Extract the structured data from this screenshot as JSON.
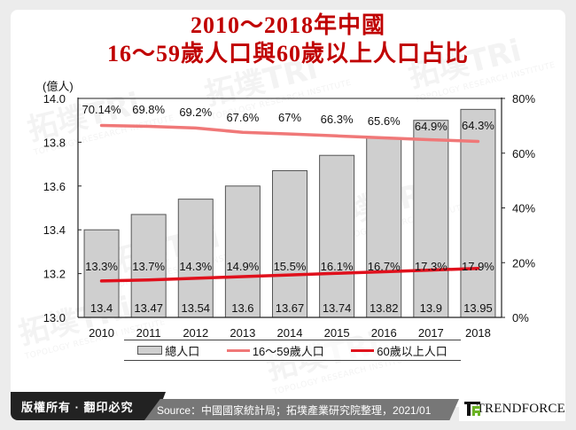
{
  "title": {
    "line1": "2010～2018年中國",
    "line2": "16～59歲人口與60歲以上人口占比"
  },
  "watermark": {
    "text": "拓墣TRi",
    "subtext": "TOPOLOGY RESEARCH INSTITUTE"
  },
  "chart_data": {
    "type": "bar",
    "title": "2010～2018年中國 16～59歲人口與60歲以上人口占比",
    "categories": [
      "2010",
      "2011",
      "2012",
      "2013",
      "2014",
      "2015",
      "2016",
      "2017",
      "2018"
    ],
    "series": [
      {
        "name": "總人口",
        "type": "bar",
        "axis": "left",
        "color": "#cfcfcf",
        "values": [
          13.4,
          13.47,
          13.54,
          13.6,
          13.67,
          13.74,
          13.82,
          13.9,
          13.95
        ],
        "labels": [
          "13.4",
          "13.47",
          "13.54",
          "13.6",
          "13.67",
          "13.74",
          "13.82",
          "13.9",
          "13.95"
        ]
      },
      {
        "name": "16～59歲人口",
        "type": "line",
        "axis": "right",
        "color": "#f07878",
        "values": [
          70.14,
          69.8,
          69.2,
          67.6,
          67,
          66.3,
          65.6,
          64.9,
          64.3
        ],
        "labels": [
          "70.14%",
          "69.8%",
          "69.2%",
          "67.6%",
          "67%",
          "66.3%",
          "65.6%",
          "64.9%",
          "64.3%"
        ]
      },
      {
        "name": "60歲以上人口",
        "type": "line",
        "axis": "right",
        "color": "#e0101c",
        "values": [
          13.3,
          13.7,
          14.3,
          14.9,
          15.5,
          16.1,
          16.7,
          17.3,
          17.9
        ],
        "labels": [
          "13.3%",
          "13.7%",
          "14.3%",
          "14.9%",
          "15.5%",
          "16.1%",
          "16.7%",
          "17.3%",
          "17.9%"
        ]
      }
    ],
    "ylabel": "(億人)",
    "ylim": [
      13.0,
      14.0
    ],
    "yticks": [
      "13.0",
      "13.2",
      "13.4",
      "13.6",
      "13.8",
      "14.0"
    ],
    "y2lim": [
      0,
      80
    ],
    "y2ticks": [
      "0%",
      "20%",
      "40%",
      "60%",
      "80%"
    ],
    "legend_position": "bottom",
    "grid": false
  },
  "legend": {
    "items": [
      "總人口",
      "16～59歲人口",
      "60歲以上人口"
    ]
  },
  "footer": {
    "copyright": "版權所有 · 翻印必究",
    "source": "Source：中國國家統計局；拓墣產業研究院整理，2021/01",
    "brand": "TRENDFORCE"
  }
}
